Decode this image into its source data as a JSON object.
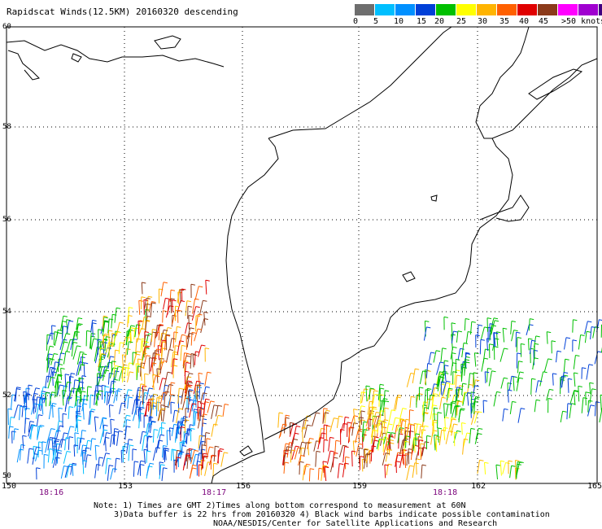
{
  "title": "Rapidscat Winds(12.5KM) 20160320 descending",
  "legend": {
    "colors": [
      "#6e6e6e",
      "#00bfff",
      "#0090ff",
      "#0040d8",
      "#00c000",
      "#ffff00",
      "#ffb400",
      "#ff6000",
      "#e00000",
      "#8b3a1a",
      "#ff00ff",
      "#a000d0",
      "#400080"
    ],
    "labels": [
      "0",
      "5",
      "10",
      "15",
      "20",
      "25",
      "30",
      "35",
      "40",
      "45",
      ">50 knots"
    ]
  },
  "lat_labels": [
    "60",
    "58",
    "56",
    "54",
    "52",
    "50"
  ],
  "lon_labels": [
    "150",
    "153",
    "156",
    "159",
    "162",
    "165"
  ],
  "time_labels": [
    "18:16",
    "18:17",
    "18:18"
  ],
  "notes": [
    "Note: 1) Times are GMT 2)Times along bottom correspond to measurement at 60N",
    "3)Data buffer is 22 hrs from 20160320 4) Black wind barbs indicate possible contamination",
    "NOAA/NESDIS/Center for Satellite Applications and Research"
  ]
}
